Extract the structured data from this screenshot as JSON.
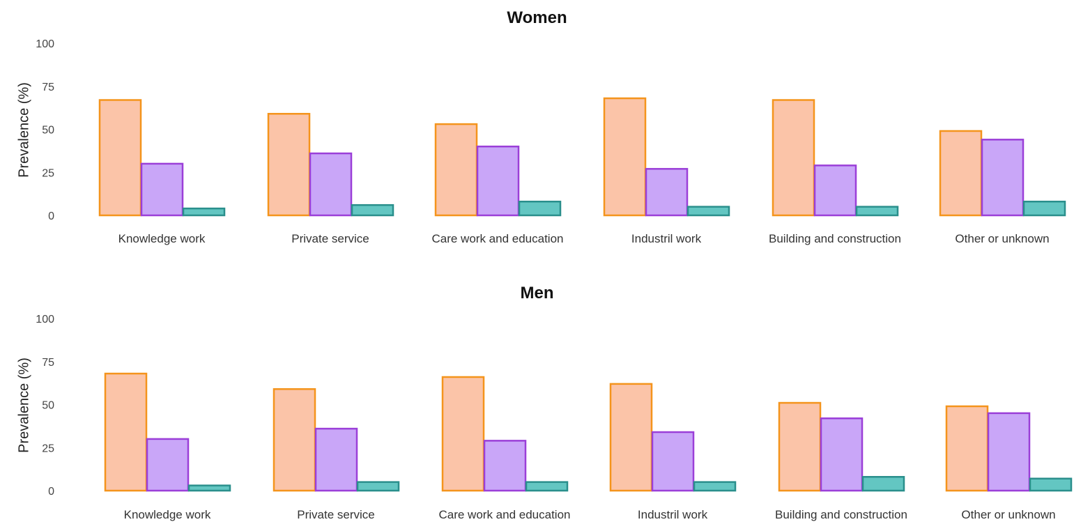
{
  "colors": {
    "series": [
      {
        "fill": "#FBC4A8",
        "stroke": "#F4941C"
      },
      {
        "fill": "#C9A6F8",
        "stroke": "#9B3FD8"
      },
      {
        "fill": "#63C6C2",
        "stroke": "#2A8F8C"
      }
    ]
  },
  "chart_data": [
    {
      "type": "bar",
      "title": "Women",
      "ylabel": "Prevalence (%)",
      "xlabel": "",
      "ylim": [
        0,
        100
      ],
      "yticks": [
        "0",
        "25",
        "50",
        "75",
        "100"
      ],
      "legend": "none",
      "grid": false,
      "categories": [
        "Knowledge work",
        "Private service",
        "Care work and education",
        "Industril work",
        "Building and construction",
        "Other or unknown"
      ],
      "series": [
        {
          "values": [
            67,
            59,
            53,
            68,
            67,
            49
          ]
        },
        {
          "values": [
            30,
            36,
            40,
            27,
            29,
            44
          ]
        },
        {
          "values": [
            4,
            6,
            8,
            5,
            5,
            8
          ]
        }
      ]
    },
    {
      "type": "bar",
      "title": "Men",
      "ylabel": "Prevalence (%)",
      "xlabel": "",
      "ylim": [
        0,
        100
      ],
      "yticks": [
        "0",
        "25",
        "50",
        "75",
        "100"
      ],
      "legend": "none",
      "grid": false,
      "categories": [
        "Knowledge work",
        "Private service",
        "Care work and education",
        "Industril work",
        "Building and construction",
        "Other or unknown"
      ],
      "series": [
        {
          "values": [
            68,
            59,
            66,
            62,
            51,
            49
          ]
        },
        {
          "values": [
            30,
            36,
            29,
            34,
            42,
            45
          ]
        },
        {
          "values": [
            3,
            5,
            5,
            5,
            8,
            7
          ]
        }
      ]
    }
  ]
}
